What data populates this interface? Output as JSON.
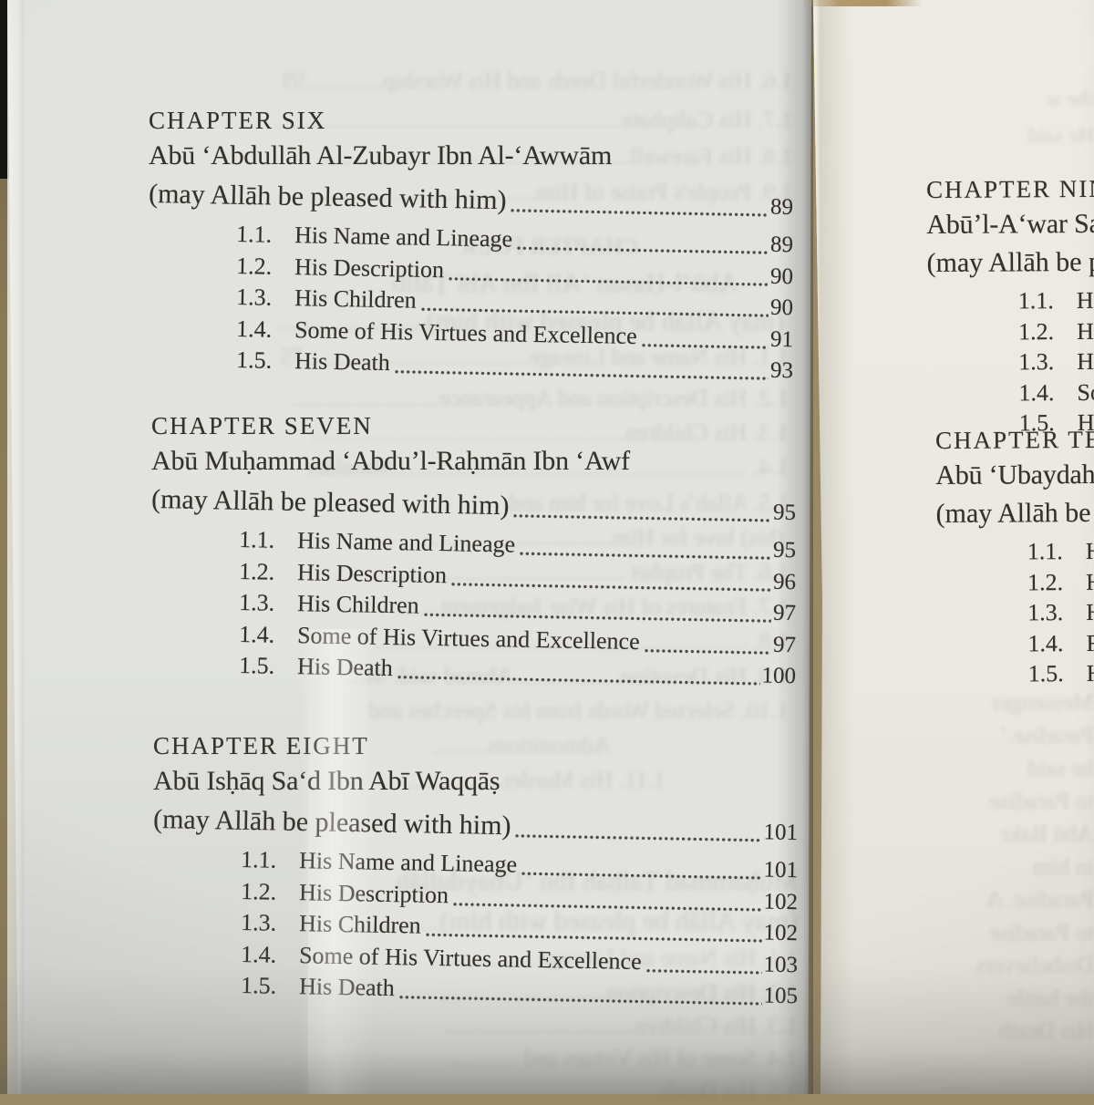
{
  "left_page": {
    "chapters": [
      {
        "heading": "CHAPTER SIX",
        "title": "Abū ‘Abdullāh Al-Zubayr Ibn Al-‘Awwām",
        "subtitle": "(may Allāh be pleased with him)",
        "subtitle_page": "89",
        "items": [
          {
            "num": "1.1.",
            "label": "His Name and Lineage",
            "page": "89"
          },
          {
            "num": "1.2.",
            "label": "His Description",
            "page": "90"
          },
          {
            "num": "1.3.",
            "label": "His Children",
            "page": "90"
          },
          {
            "num": "1.4.",
            "label": "Some of His Virtues and Excellence",
            "page": "91"
          },
          {
            "num": "1.5.",
            "label": "His Death",
            "page": "93"
          }
        ]
      },
      {
        "heading": "CHAPTER SEVEN",
        "title": "Abū Muḥammad ‘Abdu’l-Raḥmān Ibn ‘Awf",
        "subtitle": "(may Allāh be pleased with him)",
        "subtitle_page": "95",
        "items": [
          {
            "num": "1.1.",
            "label": "His Name and Lineage",
            "page": "95"
          },
          {
            "num": "1.2.",
            "label": "His Description",
            "page": "96"
          },
          {
            "num": "1.3.",
            "label": "His Children",
            "page": "97"
          },
          {
            "num": "1.4.",
            "label": "Some of His Virtues and Excellence",
            "page": "97"
          },
          {
            "num": "1.5.",
            "label": "His Death",
            "page": "100"
          }
        ]
      },
      {
        "heading": "CHAPTER EIGHT",
        "title": "Abū Isḥāq Sa‘d Ibn Abī Waqqāṣ",
        "subtitle": "(may Allāh be pleased with him)",
        "subtitle_page": "101",
        "items": [
          {
            "num": "1.1.",
            "label": "His Name and Lineage",
            "page": "101"
          },
          {
            "num": "1.2.",
            "label": "His Description",
            "page": "102"
          },
          {
            "num": "1.3.",
            "label": "His Children",
            "page": "102"
          },
          {
            "num": "1.4.",
            "label": "Some of His Virtues and Excellence",
            "page": "103"
          },
          {
            "num": "1.5.",
            "label": "His Death",
            "page": "105"
          }
        ]
      }
    ]
  },
  "right_page": {
    "chapters": [
      {
        "heading": "CHAPTER NINE",
        "title": "Abū’l-A‘war Sa‘ī",
        "subtitle": "(may Allāh be pl",
        "items": [
          {
            "num": "1.1.",
            "label": "His"
          },
          {
            "num": "1.2.",
            "label": "Hi"
          },
          {
            "num": "1.3.",
            "label": "Hi"
          },
          {
            "num": "1.4.",
            "label": "So"
          },
          {
            "num": "1.5.",
            "label": "Hi"
          }
        ]
      },
      {
        "heading": "CHAPTER TEN",
        "title": "Abū ‘Ubaydah",
        "subtitle": "(may Allāh be",
        "items": [
          {
            "num": "1.1.",
            "label": "H"
          },
          {
            "num": "1.2.",
            "label": "H"
          },
          {
            "num": "1.3.",
            "label": "H"
          },
          {
            "num": "1.4.",
            "label": "F"
          },
          {
            "num": "1.5.",
            "label": "H"
          }
        ]
      }
    ]
  },
  "ghost_left": [
    "1.6.   His Wonderful Deeds and His Worship.............59",
    "1.7.   His Caliphate...........................................................",
    "1.8.   His Farewell....................................................",
    "1.9.   People's Praise of Him.........................................",
    "CHAPTER FOUR",
    "Abū’l-Ḥasan ‘Alī Ibn Abī Ṭālib",
    "(may Allāh be pleased with him)...............................65",
    "1.1.   His Name and Lineage......................................75",
    "1.2.   His Description and Appearance.........................",
    "1.3.   His Children.....................................................",
    "1.4.   ............................................................Shoulder",
    "1.5.   Allah’s Love for him and",
    "(his) love for Him................................",
    "1.6.   The Prophet ........................................",
    "1.7.   Features of His Wise Judgement.......",
    "1.8.   ...............................................................",
    "1.9.   His Devotion..................Ahmad said: M...",
    "1.10. Selected Words from his Speeches and",
    "Admonitions.........",
    "1.11. His Murder.................",
    "Muḥammad Ṭalḥah Ibn ‘Ubaydullāh",
    "(may Allāh be pleased with him).............",
    "1.1.   His Name and Lineage.................",
    "1.2.   His Description............................",
    "1.3.   His Children................................",
    "1.4.   Some of His Virtues and ............",
    "1.5.   His Death..................................."
  ],
  "ghost_right": [
    "the w",
    "He said",
    "Messenger",
    "Paradise.’",
    "he said",
    "to Paradise",
    "Abū Bakr",
    "in him",
    "Paradise. A",
    "to Paradise",
    "Disbelievers",
    "the battle",
    "His Death"
  ]
}
